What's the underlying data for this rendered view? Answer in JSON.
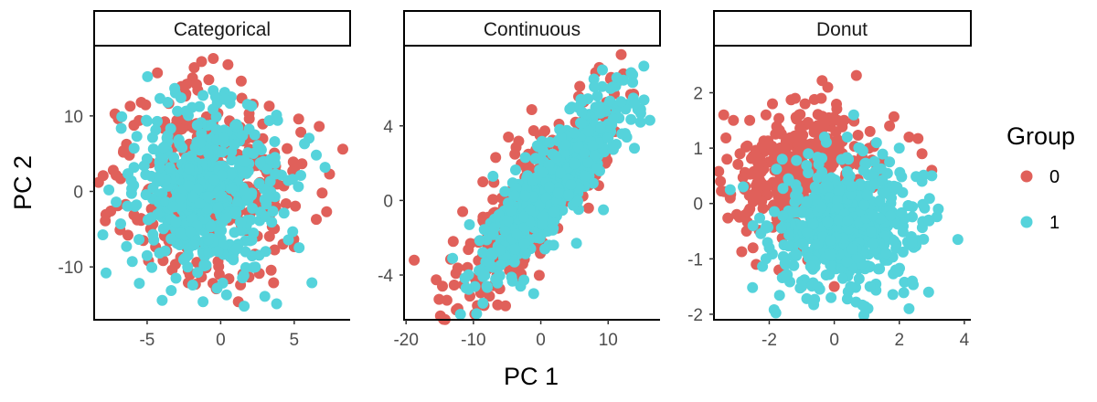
{
  "legend": {
    "title": "Group",
    "items": [
      {
        "label": "0",
        "color": "#E0605A"
      },
      {
        "label": "1",
        "color": "#55D3DB"
      }
    ]
  },
  "axes": {
    "xlabel": "PC 1",
    "ylabel": "PC 2"
  },
  "chart_data": [
    {
      "type": "scatter",
      "title": "Categorical",
      "xlim": [
        -8.6,
        8.8
      ],
      "ylim": [
        -17.0,
        19.3
      ],
      "xticks": [
        -5,
        0,
        5
      ],
      "xtick_labels": [
        "-5",
        "0",
        "5"
      ],
      "yticks": [
        -10,
        0,
        10
      ],
      "ytick_labels": [
        "-10",
        "0",
        "10"
      ],
      "grid": false,
      "series": [
        {
          "name": "0",
          "distribution": {
            "shape": "gaussian",
            "center": [
              -0.8,
              0.2
            ],
            "sd": [
              2.6,
              5.8
            ],
            "n": 380
          },
          "points": [
            [
              -8.3,
              1.2
            ],
            [
              -7.3,
              2.8
            ],
            [
              -6.6,
              5.4
            ],
            [
              -5.4,
              11.8
            ],
            [
              -4.3,
              15.7
            ],
            [
              -2.3,
              14.2
            ],
            [
              -1.8,
              16.4
            ],
            [
              -1.3,
              17.2
            ],
            [
              -0.5,
              17.6
            ],
            [
              0.5,
              16.8
            ],
            [
              1.4,
              14.6
            ],
            [
              3.3,
              11.3
            ],
            [
              5.3,
              9.6
            ],
            [
              6.7,
              8.6
            ],
            [
              8.3,
              5.6
            ],
            [
              7.4,
              2.3
            ],
            [
              6.9,
              -0.2
            ],
            [
              7.2,
              -2.7
            ],
            [
              6.5,
              -3.7
            ],
            [
              3.6,
              -12.1
            ],
            [
              1.2,
              -14.6
            ],
            [
              -0.3,
              -12.9
            ],
            [
              -2.2,
              -12.1
            ],
            [
              -3.3,
              -10.4
            ],
            [
              -4.9,
              -9.2
            ],
            [
              -6.3,
              -5.8
            ],
            [
              -7.0,
              -1.9
            ]
          ]
        },
        {
          "name": "1",
          "distribution": {
            "shape": "gaussian",
            "center": [
              -0.8,
              0.0
            ],
            "sd": [
              2.4,
              5.4
            ],
            "n": 520
          },
          "points": [
            [
              -7.6,
              0.2
            ],
            [
              -7.1,
              -1.4
            ],
            [
              -6.8,
              -4.3
            ],
            [
              -6.4,
              -7.3
            ],
            [
              -5.0,
              -8.5
            ],
            [
              -5.0,
              9.3
            ],
            [
              -5.7,
              7.3
            ],
            [
              -3.6,
              11.8
            ],
            [
              -2.7,
              12.4
            ],
            [
              -1.2,
              12.7
            ],
            [
              0.3,
              12.2
            ],
            [
              2.1,
              11.3
            ],
            [
              3.8,
              10.1
            ],
            [
              5.7,
              6.3
            ],
            [
              6.5,
              4.8
            ],
            [
              7.1,
              3.2
            ],
            [
              6.2,
              -12.1
            ],
            [
              3.0,
              -13.9
            ],
            [
              1.6,
              -15.2
            ],
            [
              0.4,
              -13.7
            ],
            [
              -1.2,
              -14.6
            ],
            [
              -1.9,
              -12.4
            ]
          ]
        }
      ]
    },
    {
      "type": "scatter",
      "title": "Continuous",
      "xlim": [
        -20.3,
        17.7
      ],
      "ylim": [
        -6.4,
        8.3
      ],
      "xticks": [
        -20,
        -10,
        0,
        10
      ],
      "xtick_labels": [
        "-20",
        "-10",
        "0",
        "10"
      ],
      "yticks": [
        -4,
        0,
        4
      ],
      "ytick_labels": [
        "-4",
        "0",
        "4"
      ],
      "grid": false,
      "series": [
        {
          "name": "0",
          "distribution": {
            "shape": "correlated",
            "center": [
              -1.5,
              -0.3
            ],
            "sd_along": 5.6,
            "sd_across": 1.55,
            "slope": 0.4,
            "n": 420
          },
          "points": [
            [
              -18.8,
              -3.2
            ],
            [
              -15.1,
              -5.3
            ],
            [
              -14.6,
              -4.6
            ],
            [
              -12.3,
              -5.8
            ],
            [
              -9.8,
              -6.1
            ],
            [
              -6.4,
              -5.6
            ],
            [
              -4.3,
              -4.1
            ],
            [
              3.4,
              1.4
            ],
            [
              7.2,
              4.6
            ],
            [
              10.8,
              6.3
            ],
            [
              11.5,
              6.4
            ],
            [
              -13.0,
              -2.2
            ],
            [
              -11.6,
              -0.6
            ],
            [
              -8.6,
              1.0
            ],
            [
              -6.7,
              2.3
            ],
            [
              -4.8,
              3.4
            ],
            [
              5.7,
              0.2
            ],
            [
              8.6,
              0.8
            ],
            [
              9.6,
              2.0
            ]
          ]
        },
        {
          "name": "1",
          "distribution": {
            "shape": "correlated",
            "center": [
              1.5,
              0.7
            ],
            "sd_along": 5.2,
            "sd_across": 1.25,
            "slope": 0.4,
            "n": 560
          },
          "points": [
            [
              15.3,
              7.2
            ],
            [
              12.6,
              4.9
            ],
            [
              11.9,
              5.3
            ],
            [
              8.4,
              5.6
            ],
            [
              6.1,
              5.3
            ],
            [
              4.3,
              4.9
            ],
            [
              2.8,
              3.8
            ],
            [
              -2.3,
              2.3
            ],
            [
              -7.1,
              1.3
            ],
            [
              -10.6,
              -1.3
            ],
            [
              -13.1,
              -3.1
            ],
            [
              -11.1,
              -4.7
            ],
            [
              -8.0,
              -4.6
            ],
            [
              -3.9,
              -3.3
            ],
            [
              1.9,
              -2.4
            ],
            [
              5.3,
              -2.3
            ],
            [
              9.3,
              -0.5
            ],
            [
              13.9,
              2.8
            ],
            [
              14.8,
              4.2
            ],
            [
              16.2,
              4.3
            ]
          ]
        }
      ]
    },
    {
      "type": "scatter",
      "title": "Donut",
      "xlim": [
        -3.7,
        4.2
      ],
      "ylim": [
        -2.1,
        2.85
      ],
      "xticks": [
        -2,
        0,
        2,
        4
      ],
      "xtick_labels": [
        "-2",
        "0",
        "2",
        "4"
      ],
      "yticks": [
        -2,
        -1,
        0,
        1,
        2
      ],
      "ytick_labels": [
        "-2",
        "-1",
        "0",
        "1",
        "2"
      ],
      "grid": false,
      "series": [
        {
          "name": "0",
          "distribution": {
            "shape": "gaussian",
            "center": [
              -1.0,
              0.5
            ],
            "sd": [
              1.05,
              0.55
            ],
            "n": 380
          },
          "points": [
            [
              -3.4,
              1.6
            ],
            [
              -3.1,
              1.5
            ],
            [
              -2.9,
              0.9
            ],
            [
              -3.3,
              0.8
            ],
            [
              -3.5,
              0.4
            ],
            [
              -3.2,
              0.1
            ],
            [
              -2.6,
              1.5
            ],
            [
              -2.1,
              1.6
            ],
            [
              -1.9,
              1.8
            ],
            [
              -1.2,
              1.9
            ],
            [
              -0.9,
              1.8
            ],
            [
              -0.4,
              1.9
            ],
            [
              -0.2,
              2.1
            ],
            [
              0.1,
              1.5
            ],
            [
              0.3,
              1.5
            ],
            [
              1.1,
              1.3
            ],
            [
              1.7,
              1.4
            ],
            [
              2.3,
              1.2
            ],
            [
              2.7,
              0.9
            ],
            [
              3.0,
              0.6
            ],
            [
              -3.0,
              -0.2
            ],
            [
              -2.7,
              -0.5
            ],
            [
              -2.5,
              -0.8
            ],
            [
              -2.4,
              -1.1
            ],
            [
              -1.7,
              -1.2
            ],
            [
              -1.0,
              -1.5
            ],
            [
              0.0,
              -1.5
            ]
          ]
        },
        {
          "name": "1",
          "distribution": {
            "shape": "gaussian",
            "center": [
              0.35,
              -0.4
            ],
            "sd": [
              1.1,
              0.55
            ],
            "n": 560
          },
          "points": [
            [
              3.8,
              -0.65
            ],
            [
              3.2,
              -0.1
            ],
            [
              3.0,
              0.5
            ],
            [
              2.9,
              -0.3
            ],
            [
              2.4,
              -1.4
            ],
            [
              2.9,
              -1.6
            ],
            [
              2.3,
              -1.9
            ],
            [
              1.1,
              -1.5
            ],
            [
              0.5,
              -1.5
            ],
            [
              -0.1,
              -1.7
            ],
            [
              -0.5,
              -1.5
            ],
            [
              -1.0,
              -1.5
            ],
            [
              -1.5,
              -1.3
            ],
            [
              -2.1,
              -1.0
            ],
            [
              -2.5,
              -0.4
            ],
            [
              -2.8,
              0.3
            ],
            [
              -3.2,
              0.25
            ],
            [
              -1.6,
              0.8
            ],
            [
              -0.8,
              0.9
            ],
            [
              -0.3,
              1.2
            ],
            [
              0.4,
              1.2
            ],
            [
              0.6,
              1.6
            ],
            [
              1.3,
              1.1
            ],
            [
              2.0,
              1.0
            ],
            [
              2.7,
              0.4
            ],
            [
              1.6,
              -0.9
            ],
            [
              2.4,
              -0.7
            ]
          ]
        }
      ]
    }
  ]
}
